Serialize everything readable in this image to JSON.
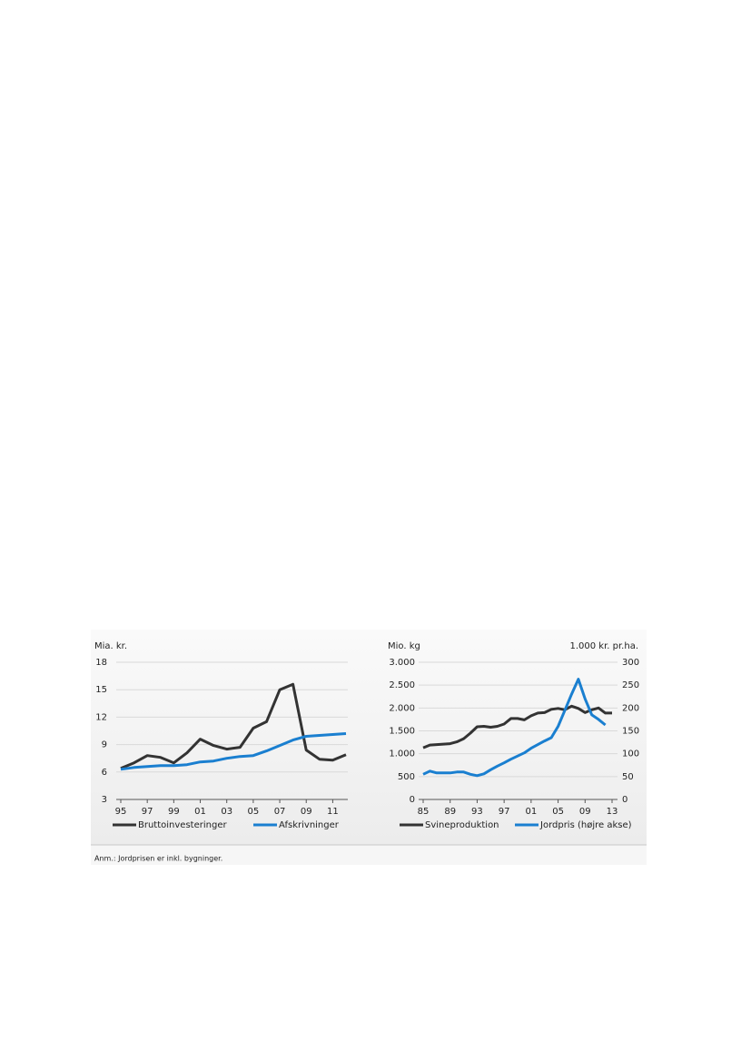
{
  "chart_data": [
    {
      "type": "line",
      "y_label": "Mia. kr.",
      "categories": [
        "95",
        null,
        "97",
        null,
        "99",
        null,
        "01",
        null,
        "03",
        null,
        "05",
        null,
        "07",
        null,
        "09",
        null,
        "11",
        null
      ],
      "series": [
        {
          "name": "Bruttoinvesteringer",
          "color": "#333333",
          "values": [
            6.4,
            7.0,
            7.8,
            7.6,
            7.0,
            8.1,
            9.6,
            8.9,
            8.5,
            8.7,
            10.8,
            11.5,
            15.0,
            15.6,
            8.4,
            7.4,
            7.3,
            7.9
          ]
        },
        {
          "name": "Afskrivninger",
          "color": "#1a7fd0",
          "values": [
            6.3,
            6.5,
            6.6,
            6.7,
            6.7,
            6.8,
            7.1,
            7.2,
            7.5,
            7.7,
            7.8,
            8.3,
            8.9,
            9.5,
            9.9,
            10.0,
            10.1,
            10.2
          ]
        }
      ],
      "ylim": [
        3,
        18
      ],
      "yticks": [
        3,
        6,
        9,
        12,
        15,
        18
      ],
      "grid": true
    },
    {
      "type": "line",
      "y_label": "Mio. kg",
      "y2_label": "1.000 kr. pr.ha.",
      "categories": [
        "85",
        null,
        null,
        null,
        "89",
        null,
        null,
        null,
        "93",
        null,
        null,
        null,
        "97",
        null,
        null,
        null,
        "01",
        null,
        null,
        null,
        "05",
        null,
        null,
        null,
        "09",
        null,
        null,
        null,
        "13"
      ],
      "series": [
        {
          "name": "Svineproduktion",
          "color": "#333333",
          "values": [
            1130,
            1190,
            1200,
            1210,
            1220,
            1260,
            1330,
            1450,
            1590,
            1600,
            1580,
            1600,
            1650,
            1770,
            1770,
            1740,
            1830,
            1890,
            1900,
            1970,
            1990,
            1960,
            2040,
            1990,
            1900,
            1960,
            2000,
            1890,
            1890
          ]
        },
        {
          "name": "Jordpris (højre akse)",
          "color": "#1a7fd0",
          "axis": "y2",
          "values": [
            55,
            62,
            58,
            58,
            58,
            60,
            60,
            55,
            52,
            56,
            65,
            73,
            80,
            88,
            95,
            102,
            112,
            120,
            128,
            135,
            160,
            195,
            230,
            263,
            220,
            185,
            175,
            163,
            null
          ]
        }
      ],
      "ylim": [
        0,
        3000
      ],
      "yticks": [
        0,
        500,
        {
          "value": 1000,
          "label": "1.000"
        },
        {
          "value": 1500,
          "label": "1.500"
        },
        {
          "value": 2000,
          "label": "2.000"
        },
        {
          "value": 2500,
          "label": "2.500"
        },
        {
          "value": 3000,
          "label": "3.000"
        }
      ],
      "y2lim": [
        0,
        300
      ],
      "y2ticks": [
        0,
        50,
        100,
        150,
        200,
        250,
        300
      ],
      "grid": true
    }
  ],
  "note": "Anm.:  Jordprisen er inkl. bygninger."
}
